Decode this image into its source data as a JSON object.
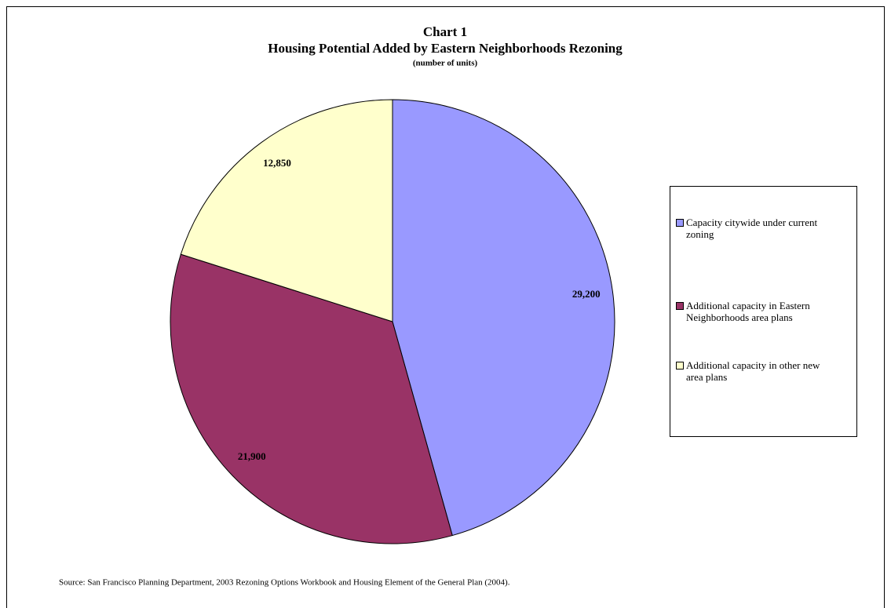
{
  "chart_data": {
    "type": "pie",
    "title": "Chart 1",
    "subtitle": "Housing Potential Added by Eastern Neighborhoods Rezoning",
    "units": "(number of units)",
    "source": "Source:  San Francisco Planning Department, 2003 Rezoning Options Workbook and Housing Element of the General Plan (2004).",
    "categories": [
      "Capacity citywide under current zoning",
      "Additional capacity in Eastern Neighborhoods area plans",
      "Additional capacity in other new area plans"
    ],
    "values": [
      29200,
      21900,
      12850
    ],
    "value_labels": [
      "29,200",
      "21,900",
      "12,850"
    ],
    "colors": [
      "#9999ff",
      "#993366",
      "#ffffcc"
    ],
    "legend": "right"
  }
}
